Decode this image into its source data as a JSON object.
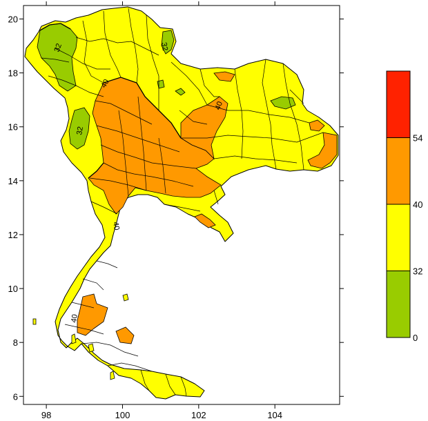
{
  "map": {
    "x_axis": {
      "ticks": [
        {
          "value": 98,
          "label": "98"
        },
        {
          "value": 100,
          "label": "100"
        },
        {
          "value": 102,
          "label": "102"
        },
        {
          "value": 104,
          "label": "104"
        }
      ],
      "range": [
        97.4,
        105.7
      ]
    },
    "y_axis": {
      "ticks": [
        {
          "value": 6,
          "label": "6"
        },
        {
          "value": 8,
          "label": "8"
        },
        {
          "value": 10,
          "label": "10"
        },
        {
          "value": 12,
          "label": "12"
        },
        {
          "value": 14,
          "label": "14"
        },
        {
          "value": 16,
          "label": "16"
        },
        {
          "value": 18,
          "label": "18"
        },
        {
          "value": 20,
          "label": "20"
        }
      ],
      "range": [
        5.7,
        20.5
      ]
    },
    "contour_labels": [
      {
        "text": "32"
      },
      {
        "text": "32"
      },
      {
        "text": "32"
      },
      {
        "text": "40"
      },
      {
        "text": "40"
      },
      {
        "text": "40"
      },
      {
        "text": "40"
      }
    ],
    "legend": {
      "bands": [
        {
          "color": "#ff2200",
          "low": 54,
          "high": null
        },
        {
          "color": "#ff9900",
          "low": 40,
          "high": 54
        },
        {
          "color": "#ffff00",
          "low": 32,
          "high": 40
        },
        {
          "color": "#99cc00",
          "low": 0,
          "high": 32
        }
      ],
      "labels": [
        "54",
        "40",
        "32",
        "0"
      ]
    },
    "colors": {
      "green": "#99cc00",
      "yellow": "#ffff00",
      "orange": "#ff9900",
      "red": "#ff2200"
    }
  }
}
